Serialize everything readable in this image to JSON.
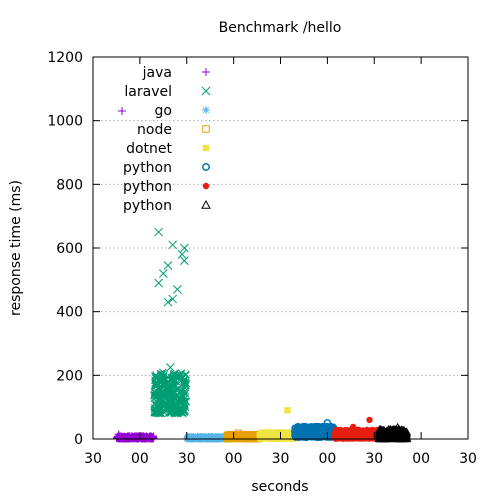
{
  "chart_data": {
    "type": "scatter",
    "title": "Benchmark /hello",
    "xlabel": "seconds",
    "ylabel": "response time (ms)",
    "ylim": [
      0,
      1200
    ],
    "yticks": [
      0,
      200,
      400,
      600,
      800,
      1000,
      1200
    ],
    "xlim": [
      0,
      16
    ],
    "xticks": [
      0,
      2,
      4,
      6,
      8,
      10,
      12,
      14,
      16
    ],
    "xtick_labels": [
      "30",
      "00",
      "30",
      "00",
      "30",
      "00",
      "30",
      "00",
      "30"
    ],
    "grid": "y-dotted",
    "legend_position": "top-left",
    "series": [
      {
        "name": "java",
        "marker": "plus",
        "color": "#9400d3",
        "x_range": [
          1.0,
          2.6
        ],
        "bulk_y_range": [
          0,
          10
        ],
        "outliers": [
          [
            1.1,
            15
          ]
        ]
      },
      {
        "name": "laravel",
        "marker": "cross",
        "color": "#009e73",
        "x_range": [
          2.6,
          4.0
        ],
        "bulk_y_range": [
          80,
          210
        ],
        "outliers": [
          [
            2.8,
            650
          ],
          [
            3.4,
            610
          ],
          [
            3.9,
            600
          ],
          [
            3.8,
            580
          ],
          [
            3.2,
            545
          ],
          [
            2.8,
            490
          ],
          [
            3.0,
            520
          ],
          [
            3.6,
            470
          ],
          [
            3.4,
            440
          ],
          [
            3.2,
            430
          ],
          [
            3.9,
            560
          ],
          [
            3.3,
            225
          ]
        ]
      },
      {
        "name": "go",
        "marker": "star",
        "color": "#56b4e9",
        "x_range": [
          4.0,
          5.7
        ],
        "bulk_y_range": [
          0,
          8
        ],
        "outliers": []
      },
      {
        "name": "node",
        "marker": "open-square",
        "color": "#e69f00",
        "x_range": [
          5.7,
          7.1
        ],
        "bulk_y_range": [
          0,
          15
        ],
        "outliers": [
          [
            6.2,
            18
          ]
        ]
      },
      {
        "name": "dotnet",
        "marker": "filled-square",
        "color": "#f0e442",
        "x_range": [
          7.1,
          8.6
        ],
        "bulk_y_range": [
          0,
          22
        ],
        "outliers": [
          [
            8.3,
            90
          ]
        ]
      },
      {
        "name": "python",
        "marker": "open-circle",
        "color": "#0072b2",
        "x_range": [
          8.6,
          10.3
        ],
        "bulk_y_range": [
          5,
          40
        ],
        "outliers": [
          [
            10.0,
            50
          ]
        ]
      },
      {
        "name": "python",
        "marker": "filled-circle",
        "color": "#e51e10",
        "x_range": [
          10.3,
          12.2
        ],
        "bulk_y_range": [
          0,
          30
        ],
        "outliers": [
          [
            11.8,
            60
          ],
          [
            11.1,
            38
          ]
        ]
      },
      {
        "name": "python",
        "marker": "open-triangle",
        "color": "#000000",
        "x_range": [
          12.2,
          13.4
        ],
        "bulk_y_range": [
          0,
          30
        ],
        "outliers": [
          [
            13.0,
            35
          ]
        ]
      }
    ],
    "stray_marker": {
      "marker": "plus",
      "color": "#9400d3"
    }
  }
}
